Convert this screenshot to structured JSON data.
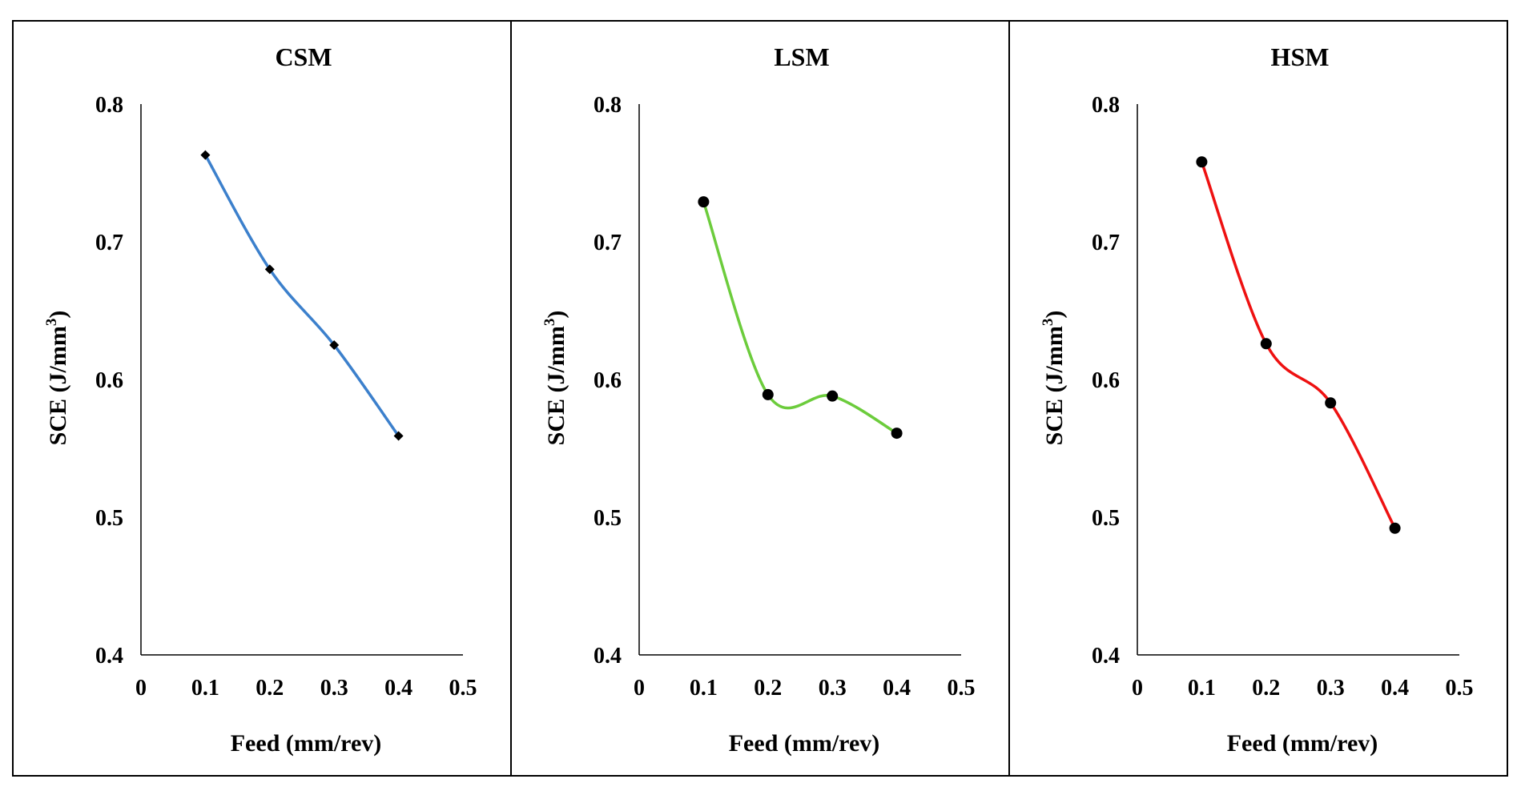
{
  "chart_data": [
    {
      "type": "line",
      "title": "CSM",
      "xlabel": "Feed (mm/rev)",
      "ylabel": "SCE (J/mm",
      "ylabel_sup": "3",
      "ylabel_end": ")",
      "xlim": [
        0,
        0.5
      ],
      "ylim": [
        0.4,
        0.8
      ],
      "xticks": [
        0,
        0.1,
        0.2,
        0.3,
        0.4,
        0.5
      ],
      "xtick_labels": [
        "0",
        "0.1",
        "0.2",
        "0.3",
        "0.4",
        "0.5"
      ],
      "yticks": [
        0.4,
        0.5,
        0.6,
        0.7,
        0.8
      ],
      "ytick_labels": [
        "0.4",
        "0.5",
        "0.6",
        "0.7",
        "0.8"
      ],
      "grid": false,
      "series": [
        {
          "name": "CSM",
          "color": "#3c80cc",
          "marker": "diamond",
          "x": [
            0.1,
            0.2,
            0.3,
            0.4
          ],
          "y": [
            0.763,
            0.68,
            0.625,
            0.559
          ]
        }
      ]
    },
    {
      "type": "line",
      "title": "LSM",
      "xlabel": "Feed (mm/rev)",
      "ylabel": "SCE (J/mm",
      "ylabel_sup": "3",
      "ylabel_end": ")",
      "xlim": [
        0,
        0.5
      ],
      "ylim": [
        0.4,
        0.8
      ],
      "xticks": [
        0,
        0.1,
        0.2,
        0.3,
        0.4,
        0.5
      ],
      "xtick_labels": [
        "0",
        "0.1",
        "0.2",
        "0.3",
        "0.4",
        "0.5"
      ],
      "yticks": [
        0.4,
        0.5,
        0.6,
        0.7,
        0.8
      ],
      "ytick_labels": [
        "0.4",
        "0.5",
        "0.6",
        "0.7",
        "0.8"
      ],
      "grid": false,
      "series": [
        {
          "name": "LSM",
          "color": "#6ccc3c",
          "marker": "circle",
          "x": [
            0.1,
            0.2,
            0.3,
            0.4
          ],
          "y": [
            0.729,
            0.589,
            0.588,
            0.561
          ]
        }
      ]
    },
    {
      "type": "line",
      "title": "HSM",
      "xlabel": "Feed (mm/rev)",
      "ylabel": "SCE (J/mm",
      "ylabel_sup": "3",
      "ylabel_end": ")",
      "xlim": [
        0,
        0.5
      ],
      "ylim": [
        0.4,
        0.8
      ],
      "xticks": [
        0,
        0.1,
        0.2,
        0.3,
        0.4,
        0.5
      ],
      "xtick_labels": [
        "0",
        "0.1",
        "0.2",
        "0.3",
        "0.4",
        "0.5"
      ],
      "yticks": [
        0.4,
        0.5,
        0.6,
        0.7,
        0.8
      ],
      "ytick_labels": [
        "0.4",
        "0.5",
        "0.6",
        "0.7",
        "0.8"
      ],
      "grid": false,
      "series": [
        {
          "name": "HSM",
          "color": "#ee1111",
          "marker": "circle",
          "x": [
            0.1,
            0.2,
            0.3,
            0.4
          ],
          "y": [
            0.758,
            0.626,
            0.583,
            0.492
          ]
        }
      ]
    }
  ]
}
